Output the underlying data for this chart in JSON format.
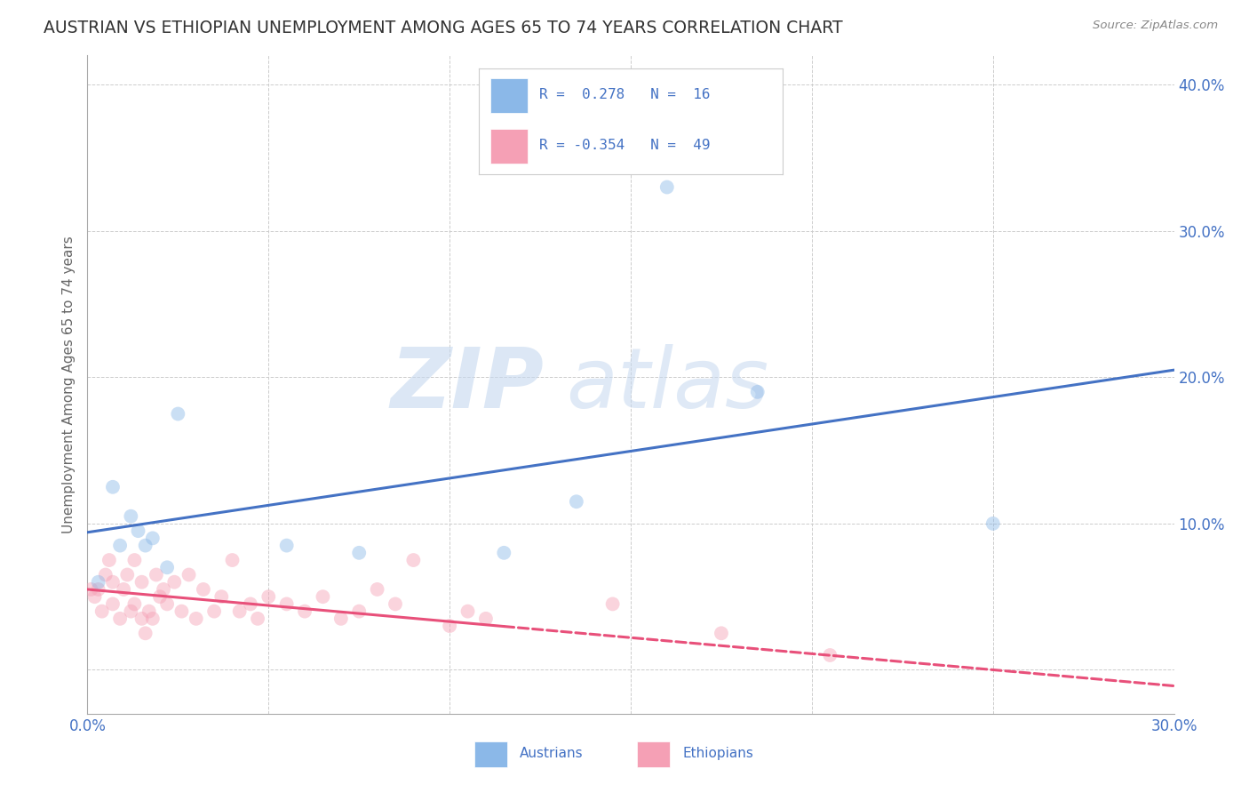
{
  "title": "AUSTRIAN VS ETHIOPIAN UNEMPLOYMENT AMONG AGES 65 TO 74 YEARS CORRELATION CHART",
  "source": "Source: ZipAtlas.com",
  "ylabel": "Unemployment Among Ages 65 to 74 years",
  "xlim": [
    0.0,
    0.3
  ],
  "ylim": [
    -0.03,
    0.42
  ],
  "xticks": [
    0.0,
    0.05,
    0.1,
    0.15,
    0.2,
    0.25,
    0.3
  ],
  "yticks": [
    0.0,
    0.1,
    0.2,
    0.3,
    0.4
  ],
  "austrians_x": [
    0.003,
    0.007,
    0.009,
    0.012,
    0.014,
    0.016,
    0.018,
    0.022,
    0.025,
    0.055,
    0.075,
    0.115,
    0.135,
    0.16,
    0.185,
    0.25
  ],
  "austrians_y": [
    0.06,
    0.125,
    0.085,
    0.105,
    0.095,
    0.085,
    0.09,
    0.07,
    0.175,
    0.085,
    0.08,
    0.08,
    0.115,
    0.33,
    0.19,
    0.1
  ],
  "ethiopians_x": [
    0.001,
    0.002,
    0.003,
    0.004,
    0.005,
    0.006,
    0.007,
    0.007,
    0.009,
    0.01,
    0.011,
    0.012,
    0.013,
    0.013,
    0.015,
    0.015,
    0.016,
    0.017,
    0.018,
    0.019,
    0.02,
    0.021,
    0.022,
    0.024,
    0.026,
    0.028,
    0.03,
    0.032,
    0.035,
    0.037,
    0.04,
    0.042,
    0.045,
    0.047,
    0.05,
    0.055,
    0.06,
    0.065,
    0.07,
    0.075,
    0.08,
    0.085,
    0.09,
    0.1,
    0.105,
    0.11,
    0.145,
    0.175,
    0.205
  ],
  "ethiopians_y": [
    0.055,
    0.05,
    0.055,
    0.04,
    0.065,
    0.075,
    0.045,
    0.06,
    0.035,
    0.055,
    0.065,
    0.04,
    0.045,
    0.075,
    0.035,
    0.06,
    0.025,
    0.04,
    0.035,
    0.065,
    0.05,
    0.055,
    0.045,
    0.06,
    0.04,
    0.065,
    0.035,
    0.055,
    0.04,
    0.05,
    0.075,
    0.04,
    0.045,
    0.035,
    0.05,
    0.045,
    0.04,
    0.05,
    0.035,
    0.04,
    0.055,
    0.045,
    0.075,
    0.03,
    0.04,
    0.035,
    0.045,
    0.025,
    0.01
  ],
  "austria_color": "#8bb8e8",
  "ethiopia_color": "#f5a0b5",
  "austria_line_color": "#4472c4",
  "ethiopia_line_color": "#e8507a",
  "legend_R_austria": "0.278",
  "legend_N_austria": "16",
  "legend_R_ethiopia": "-0.354",
  "legend_N_ethiopia": "49",
  "watermark_zip": "ZIP",
  "watermark_atlas": "atlas",
  "background_color": "#ffffff",
  "grid_color": "#cccccc",
  "marker_size": 130,
  "marker_alpha": 0.45,
  "title_color": "#333333",
  "axis_label_color": "#666666",
  "tick_color": "#4472c4",
  "legend_text_color": "#4472c4",
  "title_fontsize": 13.5,
  "ylabel_fontsize": 11,
  "austria_line_intercept": 0.094,
  "austria_line_slope": 0.37,
  "ethiopia_line_intercept": 0.055,
  "ethiopia_line_slope": -0.22
}
